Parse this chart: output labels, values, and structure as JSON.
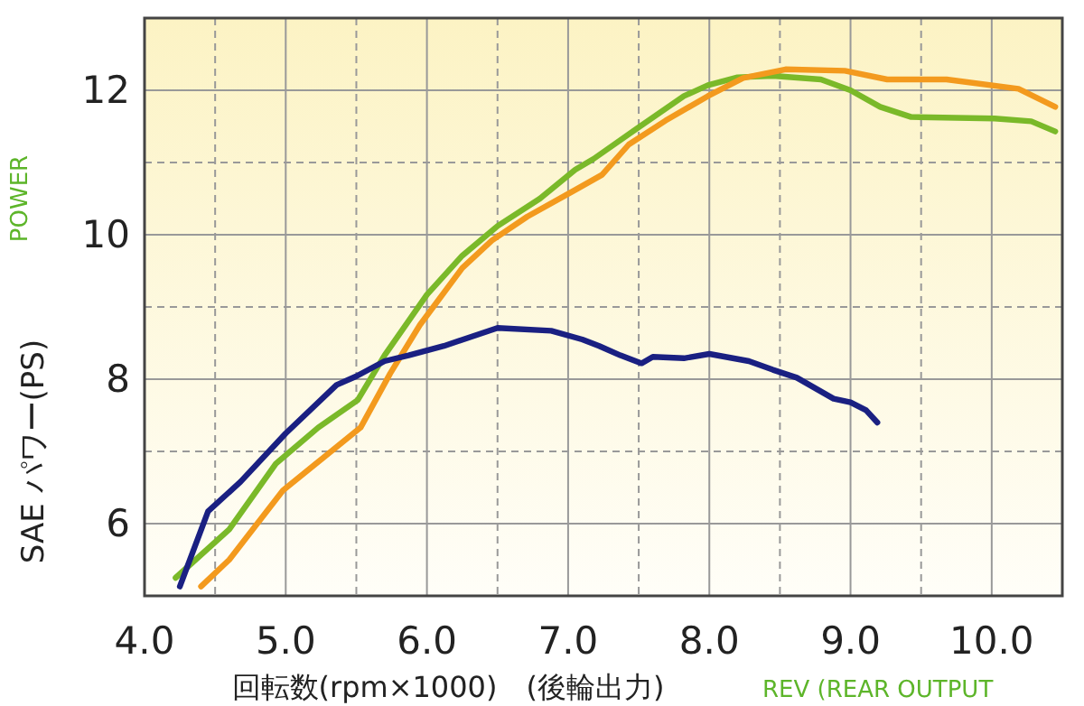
{
  "chart_data": {
    "type": "line",
    "xlabel": "回転数(rpm×1000)　(後輪出力)",
    "ylabel": "SAE パワー(PS)",
    "annotations": [
      "POWER",
      "REV (REAR OUTPUT"
    ],
    "xlim": [
      4.0,
      10.5
    ],
    "ylim": [
      5,
      13
    ],
    "xticks": [
      {
        "value": 4,
        "label": "4.0"
      },
      {
        "value": 4.5,
        "label": null
      },
      {
        "value": 5,
        "label": "5.0"
      },
      {
        "value": 5.5,
        "label": null
      },
      {
        "value": 6,
        "label": "6.0"
      },
      {
        "value": 6.5,
        "label": null
      },
      {
        "value": 7,
        "label": "7.0"
      },
      {
        "value": 7.5,
        "label": null
      },
      {
        "value": 8,
        "label": "8.0"
      },
      {
        "value": 8.5,
        "label": null
      },
      {
        "value": 9,
        "label": "9.0"
      },
      {
        "value": 9.5,
        "label": null
      },
      {
        "value": 10,
        "label": "10.0"
      }
    ],
    "yticks": [
      {
        "value": 5,
        "label": null
      },
      6,
      {
        "value": 7,
        "label": null
      },
      8,
      {
        "value": 9,
        "label": null
      },
      10,
      {
        "value": 11,
        "label": null
      },
      12,
      {
        "value": 13,
        "label": null
      }
    ],
    "grid": true,
    "marker": "none",
    "line_style": "solid",
    "series": [
      {
        "color": "#7ab929",
        "x": [
          4.22,
          4.6,
          4.93,
          5.23,
          5.51,
          5.7,
          6.0,
          6.25,
          6.5,
          6.8,
          7.05,
          7.18,
          7.48,
          7.82,
          7.99,
          8.2,
          8.45,
          8.79,
          9.0,
          9.21,
          9.43,
          10.02,
          10.28,
          10.45
        ],
        "values": [
          5.25,
          5.92,
          6.83,
          7.33,
          7.71,
          8.33,
          9.17,
          9.71,
          10.12,
          10.5,
          10.9,
          11.05,
          11.46,
          11.92,
          12.07,
          12.18,
          12.2,
          12.15,
          12.0,
          11.77,
          11.63,
          11.61,
          11.57,
          11.43
        ]
      },
      {
        "color": "#f39a1e",
        "x": [
          4.4,
          4.6,
          4.98,
          5.27,
          5.53,
          5.74,
          5.95,
          6.25,
          6.46,
          6.71,
          7.05,
          7.24,
          7.43,
          7.69,
          7.99,
          8.24,
          8.54,
          8.96,
          9.26,
          9.68,
          10.19,
          10.45
        ],
        "values": [
          5.13,
          5.5,
          6.46,
          6.92,
          7.33,
          8.08,
          8.75,
          9.54,
          9.92,
          10.25,
          10.62,
          10.83,
          11.25,
          11.58,
          11.92,
          12.17,
          12.29,
          12.27,
          12.15,
          12.15,
          12.02,
          11.77
        ]
      },
      {
        "color": "#1a2082",
        "x": [
          4.25,
          4.45,
          4.68,
          5.0,
          5.36,
          5.5,
          5.7,
          5.87,
          6.12,
          6.5,
          6.88,
          7.1,
          7.22,
          7.37,
          7.52,
          7.6,
          7.82,
          8.0,
          8.28,
          8.45,
          8.62,
          8.88,
          9.0,
          9.11,
          9.19
        ],
        "values": [
          5.13,
          6.17,
          6.58,
          7.25,
          7.92,
          8.04,
          8.25,
          8.33,
          8.46,
          8.71,
          8.67,
          8.55,
          8.46,
          8.33,
          8.22,
          8.31,
          8.29,
          8.35,
          8.25,
          8.13,
          8.02,
          7.73,
          7.68,
          7.57,
          7.4
        ]
      }
    ]
  }
}
